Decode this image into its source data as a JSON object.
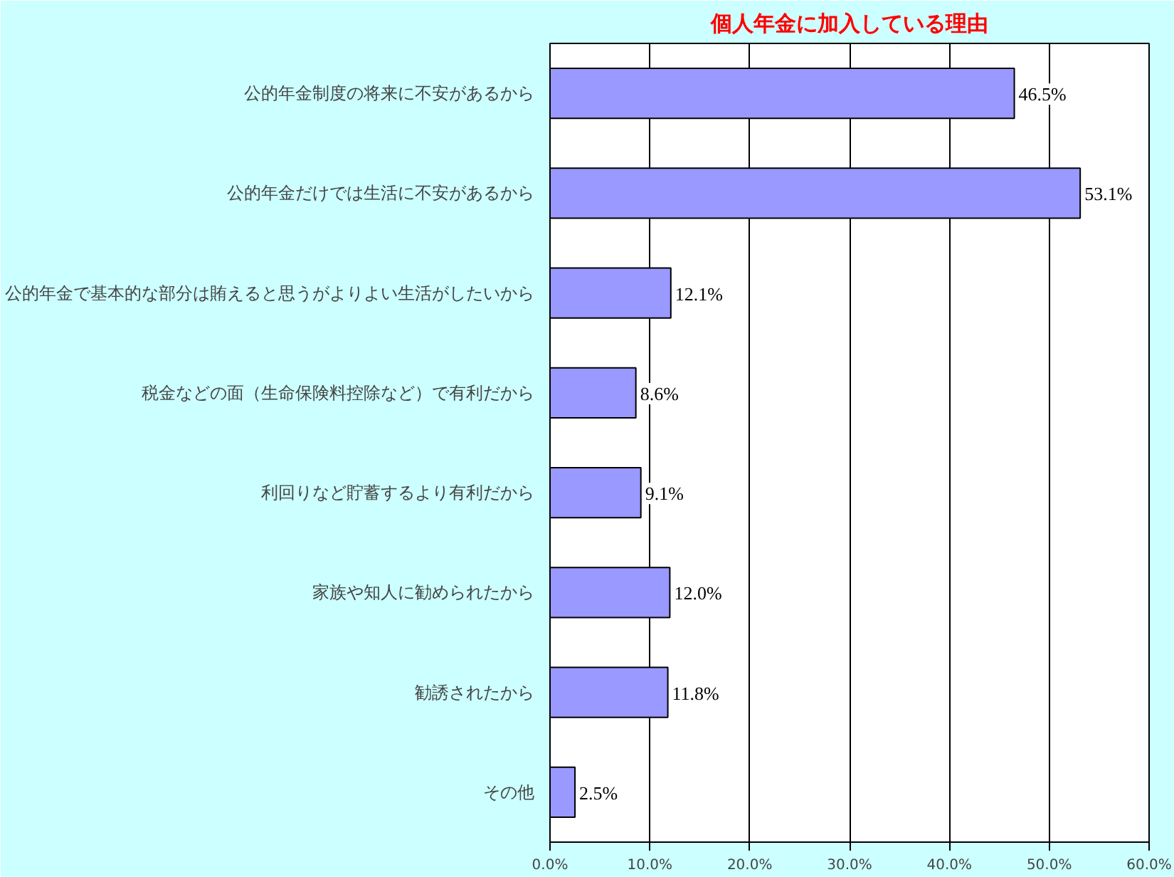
{
  "chart_data": {
    "type": "bar",
    "orientation": "horizontal",
    "title": "個人年金に加入している理由",
    "categories": [
      "公的年金制度の将来に不安があるから",
      "公的年金だけでは生活に不安があるから",
      "公的年金で基本的な部分は賄えると思うがよりよい生活がしたいから",
      "税金などの面（生命保険料控除など）で有利だから",
      "利回りなど貯蓄するより有利だから",
      "家族や知人に勧められたから",
      "勧誘されたから",
      "その他"
    ],
    "values": [
      46.5,
      53.1,
      12.1,
      8.6,
      9.1,
      12.0,
      11.8,
      2.5
    ],
    "value_labels": [
      "46.5%",
      "53.1%",
      "12.1%",
      "8.6%",
      "9.1%",
      "12.0%",
      "11.8%",
      "2.5%"
    ],
    "color": "#9999ff",
    "xlim": [
      0,
      60
    ],
    "xticks": [
      {
        "value": 0,
        "label": "0.0%"
      },
      {
        "value": 10,
        "label": "10.0%"
      },
      {
        "value": 20,
        "label": "20.0%"
      },
      {
        "value": 30,
        "label": "30.0%"
      },
      {
        "value": 40,
        "label": "40.0%"
      },
      {
        "value": 50,
        "label": "50.0%"
      },
      {
        "value": 60,
        "label": "60.0%"
      }
    ],
    "grid": "x"
  }
}
